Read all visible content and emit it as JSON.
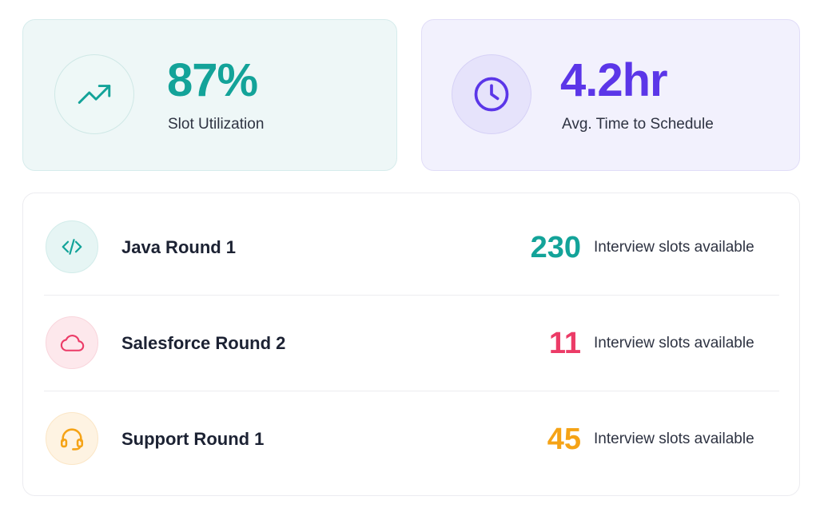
{
  "stats": [
    {
      "value": "87%",
      "label": "Slot Utilization",
      "icon": "trending-up-icon",
      "color": "#13a399"
    },
    {
      "value": "4.2hr",
      "label": "Avg. Time to Schedule",
      "icon": "clock-icon",
      "color": "#5b36e8"
    }
  ],
  "rounds": [
    {
      "title": "Java Round 1",
      "count": "230",
      "caption": "Interview slots available",
      "icon": "code-icon",
      "color": "#13a399"
    },
    {
      "title": "Salesforce Round 2",
      "count": "11",
      "caption": "Interview slots available",
      "icon": "cloud-icon",
      "color": "#ec3b67"
    },
    {
      "title": "Support Round 1",
      "count": "45",
      "caption": "Interview slots available",
      "icon": "headset-icon",
      "color": "#f5a316"
    }
  ]
}
